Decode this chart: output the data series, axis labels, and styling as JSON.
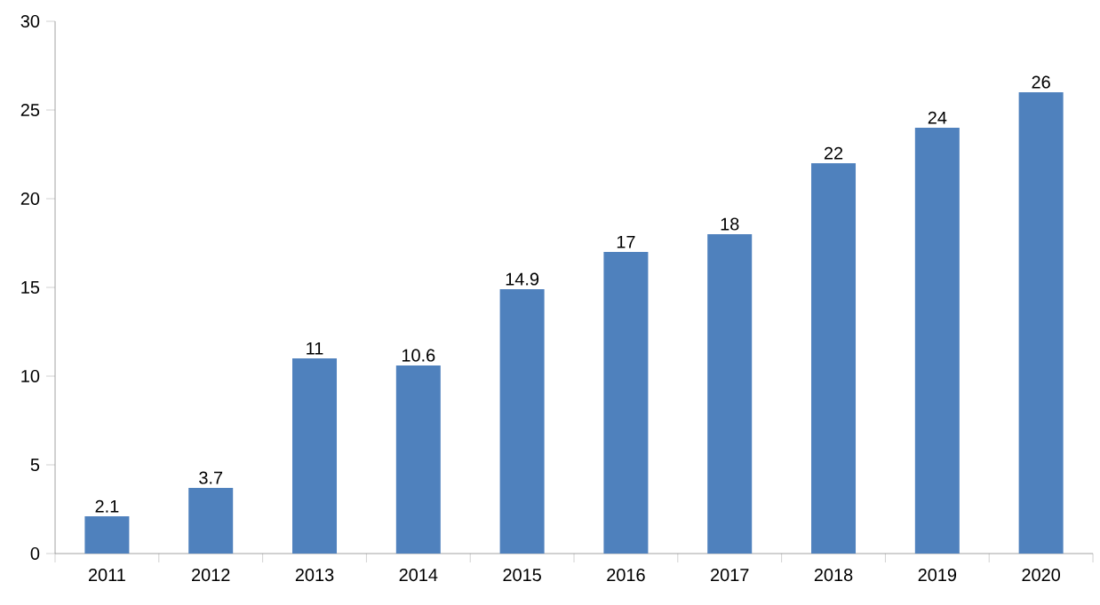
{
  "chart_data": {
    "type": "bar",
    "categories": [
      "2011",
      "2012",
      "2013",
      "2014",
      "2015",
      "2016",
      "2017",
      "2018",
      "2019",
      "2020"
    ],
    "values": [
      2.1,
      3.7,
      11,
      10.6,
      14.9,
      17,
      18,
      22,
      24,
      26
    ],
    "color": "#4f81bd",
    "ylim": [
      0,
      30
    ],
    "yticks": [
      0,
      5,
      10,
      15,
      20,
      25,
      30
    ],
    "data_labels": true
  }
}
